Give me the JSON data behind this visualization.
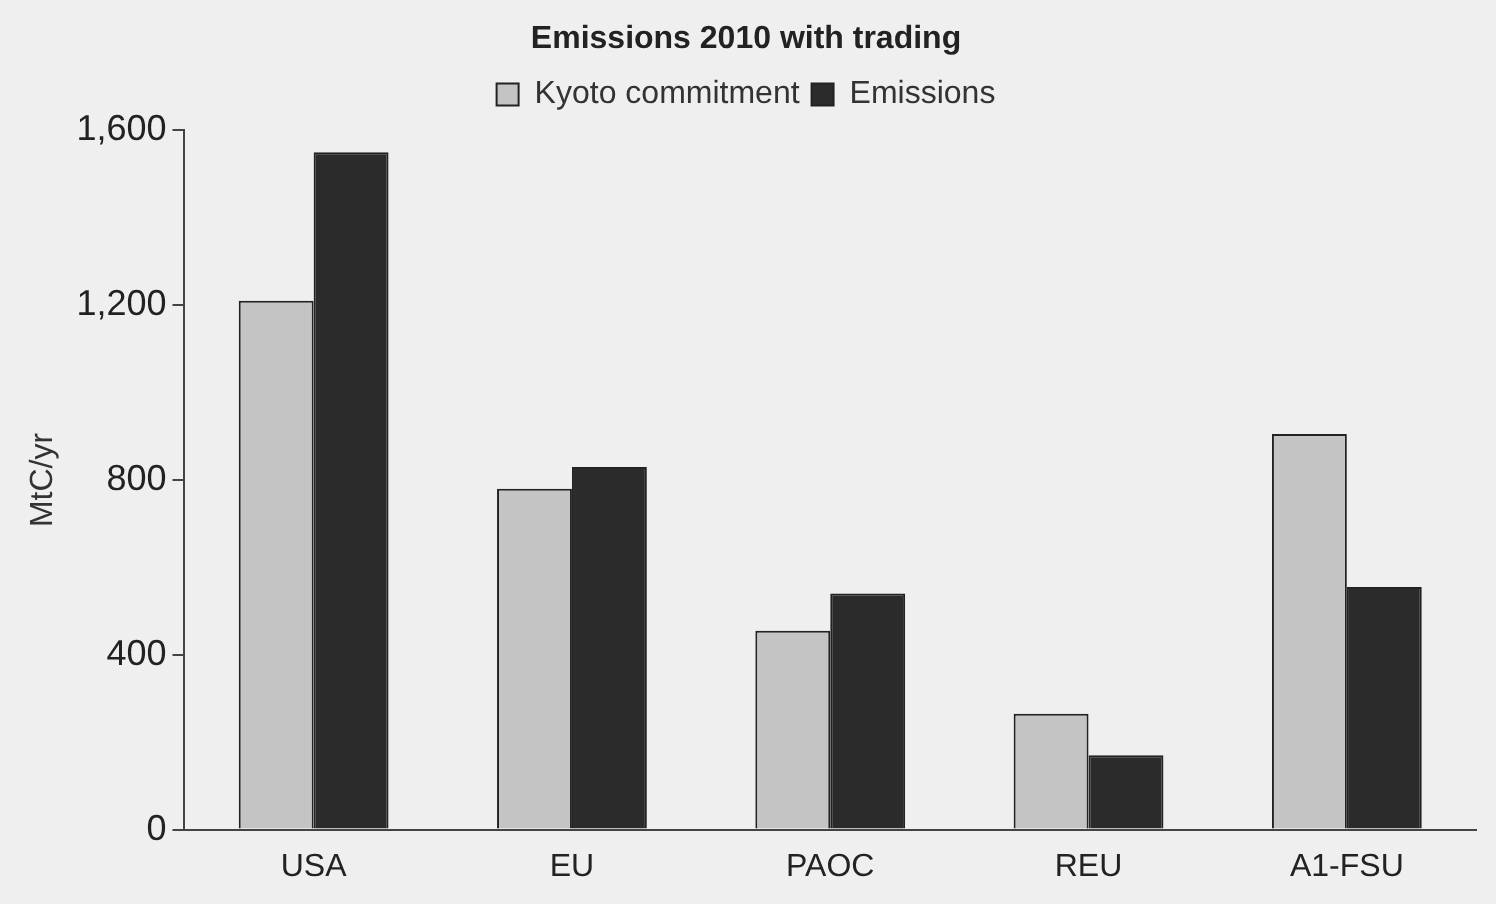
{
  "chart_data": {
    "type": "bar",
    "title": "Emissions 2010 with trading",
    "ylabel": "MtC/yr",
    "categories": [
      "USA",
      "EU",
      "PAOC",
      "REU",
      "A1-FSU"
    ],
    "series": [
      {
        "name": "Kyoto commitment",
        "color": "#c4c4c4",
        "values": [
          1210,
          780,
          455,
          265,
          905
        ]
      },
      {
        "name": "Emissions",
        "color": "#2b2b2b",
        "values": [
          1550,
          830,
          540,
          170,
          555
        ]
      }
    ],
    "ylim": [
      0,
      1600
    ],
    "yticks": [
      {
        "value": 0,
        "label": "0"
      },
      {
        "value": 400,
        "label": "400"
      },
      {
        "value": 800,
        "label": "800"
      },
      {
        "value": 1200,
        "label": "1,200"
      },
      {
        "value": 1600,
        "label": "1,600"
      }
    ],
    "grid": false,
    "legend": "top"
  }
}
